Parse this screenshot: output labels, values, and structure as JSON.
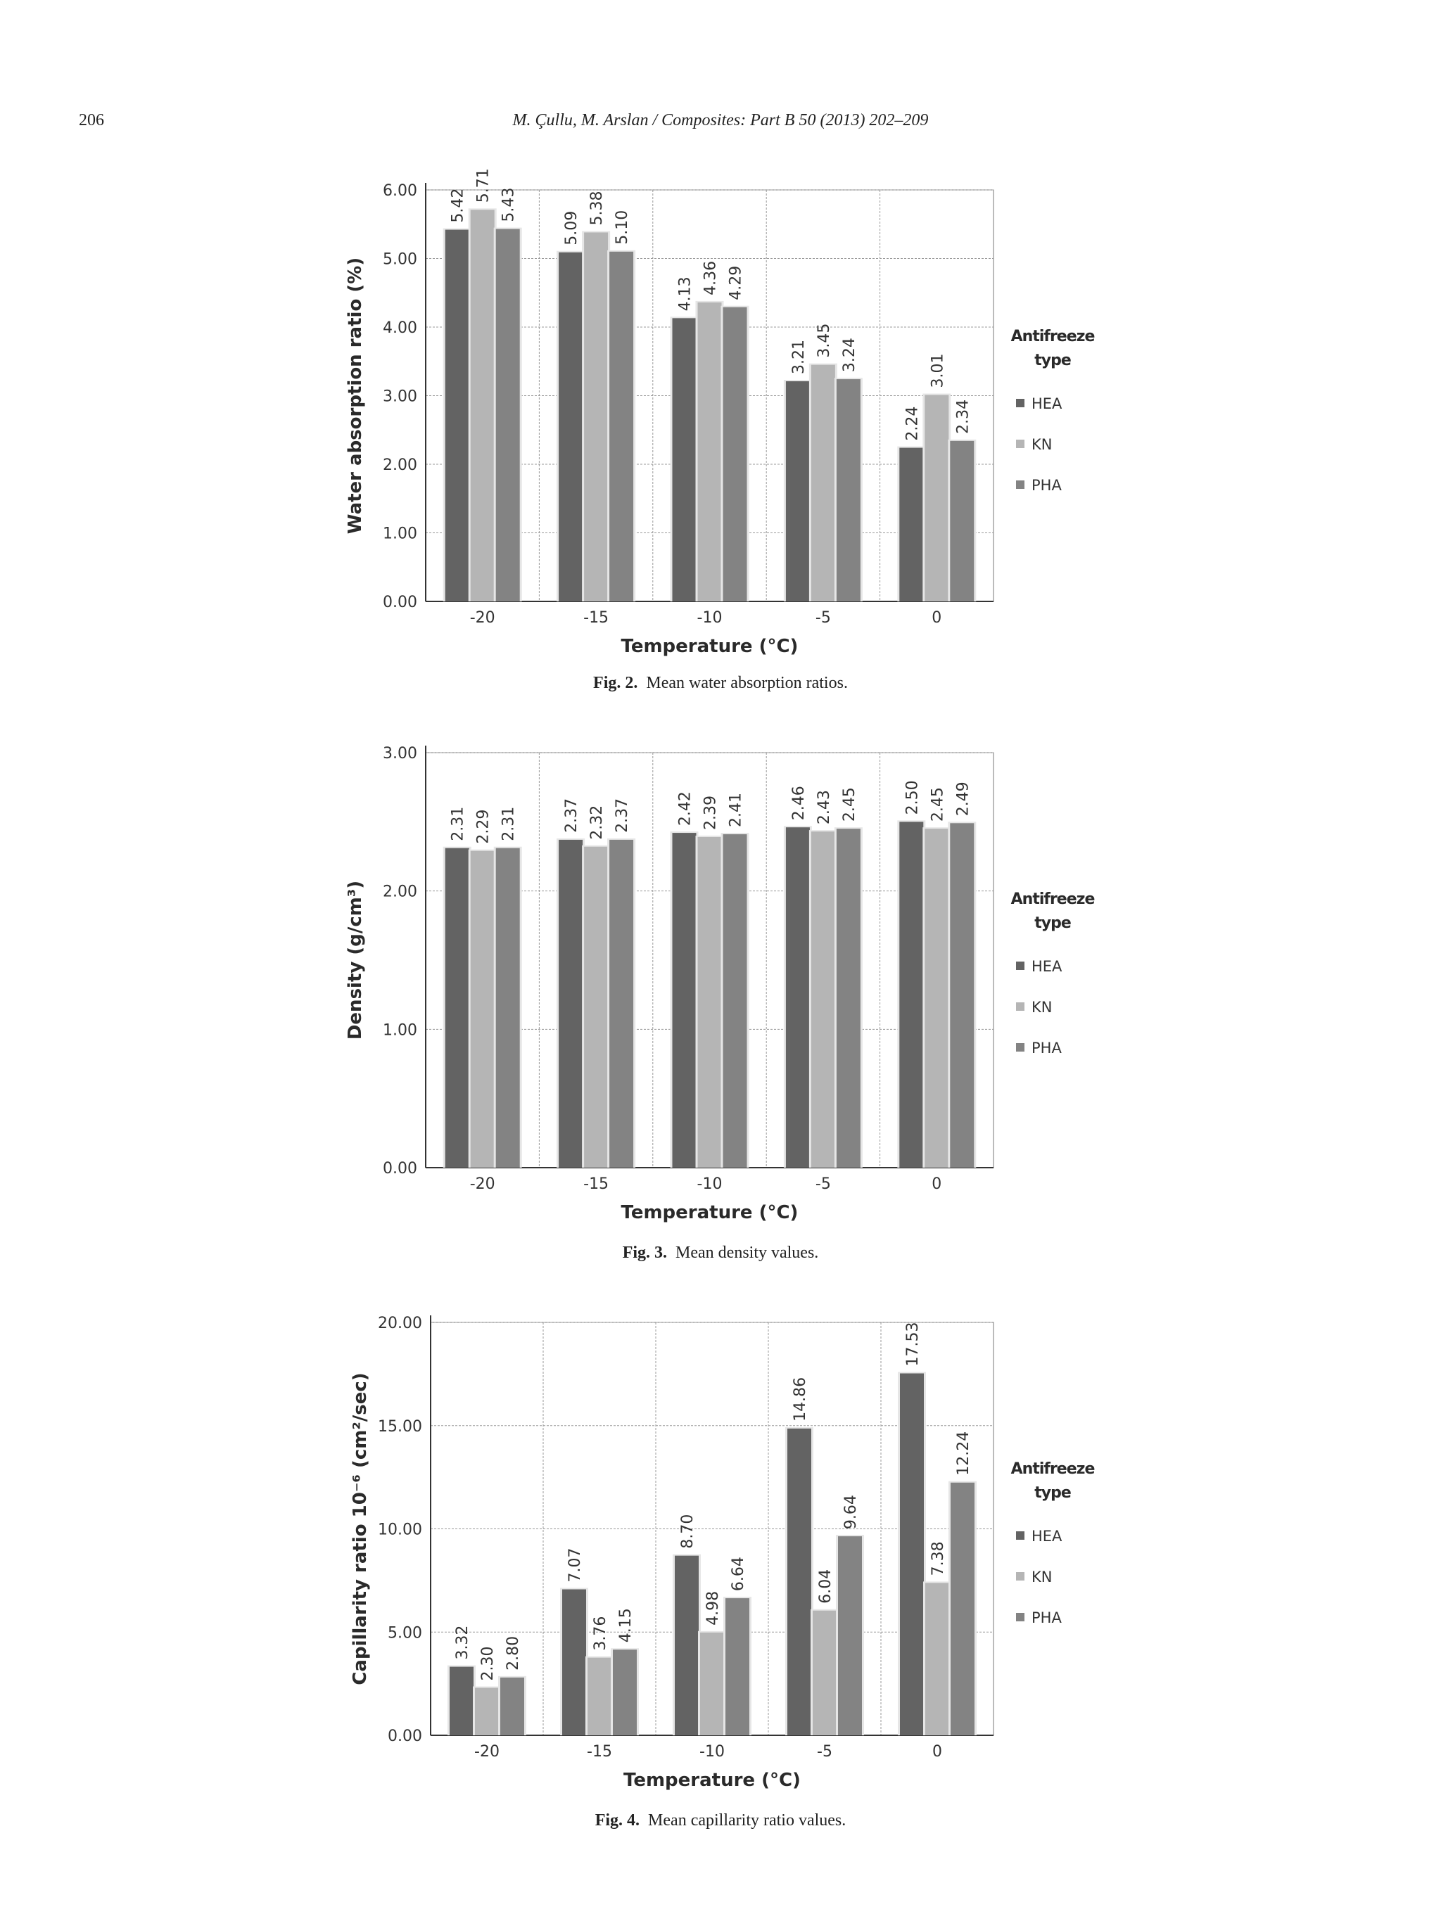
{
  "header": {
    "page_number": "206",
    "running_head": "M. Çullu, M. Arslan / Composites: Part B 50 (2013) 202–209"
  },
  "figures": [
    {
      "caption_label": "Fig. 2.",
      "caption_text": "Mean water absorption ratios.",
      "chart_data": {
        "type": "bar",
        "categories": [
          "-20",
          "-15",
          "-10",
          "-5",
          "0"
        ],
        "series": [
          {
            "name": "HEA",
            "values": [
              5.42,
              5.09,
              4.13,
              3.21,
              2.24
            ],
            "color": "#636363"
          },
          {
            "name": "KN",
            "values": [
              5.71,
              5.38,
              4.36,
              3.45,
              3.01
            ],
            "color": "#b5b5b5"
          },
          {
            "name": "PHA",
            "values": [
              5.43,
              5.1,
              4.29,
              3.24,
              2.34
            ],
            "color": "#838383"
          }
        ],
        "ylabel": "Water absorption ratio (%)",
        "xlabel": "Temperature (°C)",
        "ylim": [
          0,
          6
        ],
        "yticks": [
          "0.00",
          "1.00",
          "2.00",
          "3.00",
          "4.00",
          "5.00",
          "6.00"
        ],
        "legend_title": "Antifreeze type",
        "legend_position": "right",
        "grid": true
      }
    },
    {
      "caption_label": "Fig. 3.",
      "caption_text": "Mean density values.",
      "chart_data": {
        "type": "bar",
        "categories": [
          "-20",
          "-15",
          "-10",
          "-5",
          "0"
        ],
        "series": [
          {
            "name": "HEA",
            "values": [
              2.31,
              2.37,
              2.42,
              2.46,
              2.5
            ],
            "color": "#636363"
          },
          {
            "name": "KN",
            "values": [
              2.29,
              2.32,
              2.39,
              2.43,
              2.45
            ],
            "color": "#b5b5b5"
          },
          {
            "name": "PHA",
            "values": [
              2.31,
              2.37,
              2.41,
              2.45,
              2.49
            ],
            "color": "#838383"
          }
        ],
        "ylabel": "Density (g/cm³)",
        "xlabel": "Temperature (°C)",
        "ylim": [
          0,
          3
        ],
        "yticks": [
          "0.00",
          "1.00",
          "2.00",
          "3.00"
        ],
        "legend_title": "Antifreeze type",
        "legend_position": "right",
        "grid": true
      }
    },
    {
      "caption_label": "Fig. 4.",
      "caption_text": "Mean capillarity ratio values.",
      "chart_data": {
        "type": "bar",
        "categories": [
          "-20",
          "-15",
          "-10",
          "-5",
          "0"
        ],
        "series": [
          {
            "name": "HEA",
            "values": [
              3.32,
              7.07,
              8.7,
              14.86,
              17.53
            ],
            "color": "#636363"
          },
          {
            "name": "KN",
            "values": [
              2.3,
              3.76,
              4.98,
              6.04,
              7.38
            ],
            "color": "#b5b5b5"
          },
          {
            "name": "PHA",
            "values": [
              2.8,
              4.15,
              6.64,
              9.64,
              12.24
            ],
            "color": "#838383"
          }
        ],
        "ylabel": "Capillarity ratio 10⁻⁶ (cm²/sec)",
        "xlabel": "Temperature (°C)",
        "ylim": [
          0,
          20
        ],
        "yticks": [
          "0.00",
          "5.00",
          "10.00",
          "15.00",
          "20.00"
        ],
        "legend_title": "Antifreeze type",
        "legend_position": "right",
        "grid": true
      }
    }
  ]
}
